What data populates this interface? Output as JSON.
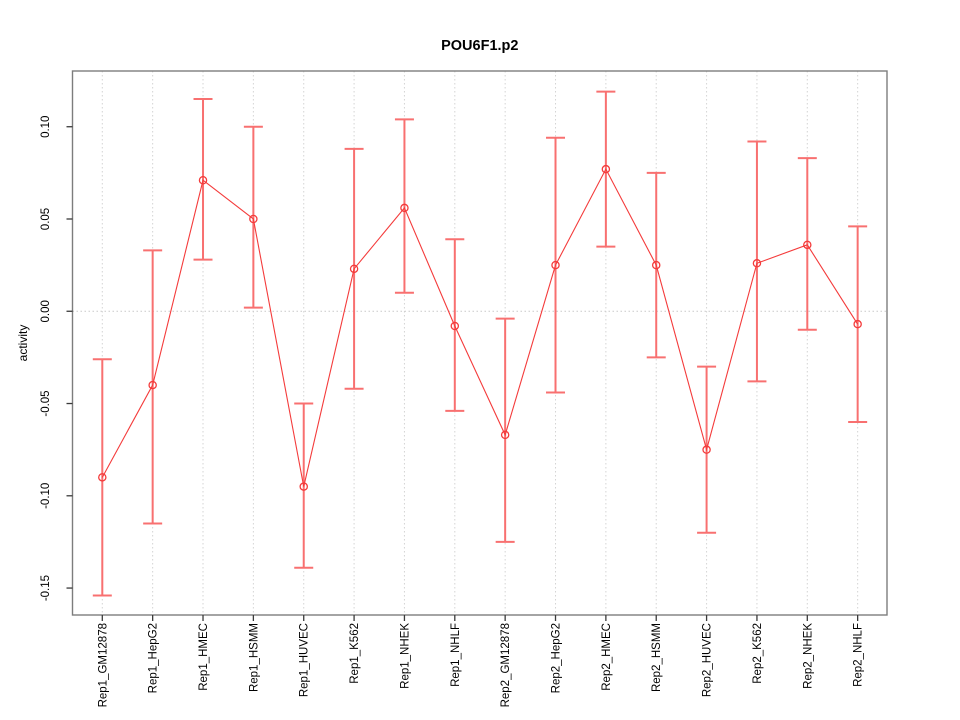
{
  "chart_data": {
    "type": "line",
    "title": "POU6F1.p2",
    "ylabel": "activity",
    "xlabel": "",
    "categories": [
      "Rep1_GM12878",
      "Rep1_HepG2",
      "Rep1_HMEC",
      "Rep1_HSMM",
      "Rep1_HUVEC",
      "Rep1_K562",
      "Rep1_NHEK",
      "Rep1_NHLF",
      "Rep2_GM12878",
      "Rep2_HepG2",
      "Rep2_HMEC",
      "Rep2_HSMM",
      "Rep2_HUVEC",
      "Rep2_K562",
      "Rep2_NHEK",
      "Rep2_NHLF"
    ],
    "series": [
      {
        "name": "activity",
        "marker": "open-circle",
        "values": [
          -0.09,
          -0.04,
          0.071,
          0.05,
          -0.095,
          0.023,
          0.056,
          -0.008,
          -0.067,
          0.025,
          0.077,
          0.025,
          -0.075,
          0.026,
          0.036,
          -0.007
        ],
        "error_low": [
          -0.154,
          -0.115,
          0.028,
          0.002,
          -0.139,
          -0.042,
          0.01,
          -0.054,
          -0.125,
          -0.044,
          0.035,
          -0.025,
          -0.12,
          -0.038,
          -0.01,
          -0.06
        ],
        "error_high": [
          -0.026,
          0.033,
          0.115,
          0.1,
          -0.05,
          0.088,
          0.104,
          0.039,
          -0.004,
          0.094,
          0.119,
          0.075,
          -0.03,
          0.092,
          0.083,
          0.046
        ]
      }
    ],
    "yticks": {
      "values": [
        0.1,
        0.05,
        0.0,
        -0.05,
        -0.1,
        -0.15
      ],
      "labels": [
        "0.10",
        "0.05",
        "0.00",
        "-0.05",
        "-0.10",
        "-0.15"
      ]
    },
    "ylim": [
      -0.1646,
      0.1302
    ],
    "grid": "vertical-dotted",
    "zero_line": true,
    "legend": "none",
    "colors": {
      "line": "#f43b3b",
      "point": "#f43b3b",
      "error_bar": "#f87070",
      "gridline": "#d4d4d4",
      "zero_line": "#c9c9c9",
      "box": "#7d7d7d",
      "tick": "#3a3a3a",
      "text": "#000000"
    }
  }
}
